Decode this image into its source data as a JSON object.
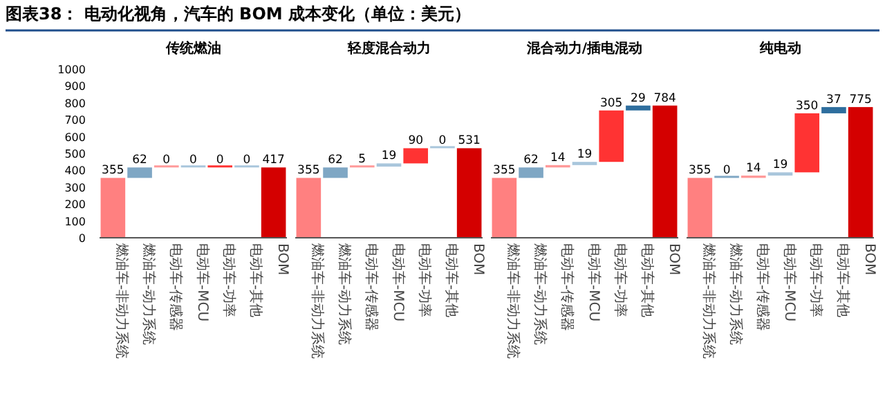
{
  "chart_data": [
    {
      "type": "bar",
      "title": "传统燃油",
      "annotations": [
        "图表38：  电动化视角，汽车的 BOM 成本变化（单位：美元）"
      ],
      "categories": [
        "燃油车-非动力系统",
        "燃油车-动力系统",
        "电动车-传感器",
        "电动车-MCU",
        "电动车-功率",
        "电动车-其他",
        "BOM"
      ],
      "values": [
        355,
        62,
        0,
        0,
        0,
        0,
        417
      ],
      "base": [
        0,
        355,
        417,
        417,
        417,
        417,
        0
      ],
      "colors": [
        "#ff8080",
        "#7fa7c4",
        "#ff9a9a",
        "#a9c6dc",
        "#ff3333",
        "#a9c6dc",
        "#d40000"
      ],
      "ylim": [
        0,
        1000
      ],
      "yticks": [
        0,
        100,
        200,
        300,
        400,
        500,
        600,
        700,
        800,
        900,
        1000
      ],
      "data_labels": true
    },
    {
      "type": "bar",
      "title": "轻度混合动力",
      "categories": [
        "燃油车-非动力系统",
        "燃油车-动力系统",
        "电动车-传感器",
        "电动车-MCU",
        "电动车-功率",
        "电动车-其他",
        "BOM"
      ],
      "values": [
        355,
        62,
        5,
        19,
        90,
        0,
        531
      ],
      "base": [
        0,
        355,
        417,
        422,
        441,
        531,
        0
      ],
      "colors": [
        "#ff8080",
        "#7fa7c4",
        "#ff9a9a",
        "#a9c6dc",
        "#ff3333",
        "#a9c6dc",
        "#d40000"
      ],
      "ylim": [
        0,
        1000
      ],
      "tick_labels": "x",
      "data_labels": true
    },
    {
      "type": "bar",
      "title": "混合动力/插电混动",
      "categories": [
        "燃油车-非动力系统",
        "燃油车-动力系统",
        "电动车-传感器",
        "电动车-MCU",
        "电动车-功率",
        "电动车-其他",
        "BOM"
      ],
      "values": [
        355,
        62,
        14,
        19,
        305,
        29,
        784
      ],
      "base": [
        0,
        355,
        417,
        431,
        450,
        755,
        0
      ],
      "colors": [
        "#ff8080",
        "#7fa7c4",
        "#ff9a9a",
        "#a9c6dc",
        "#ff3333",
        "#2e6e9e",
        "#d40000"
      ],
      "ylim": [
        0,
        1000
      ],
      "tick_labels": "x",
      "data_labels": true
    },
    {
      "type": "bar",
      "title": "纯电动",
      "categories": [
        "燃油车-非动力系统",
        "燃油车-动力系统",
        "电动车-传感器",
        "电动车-MCU",
        "电动车-功率",
        "电动车-其他",
        "BOM"
      ],
      "values": [
        355,
        0,
        14,
        19,
        350,
        37,
        775
      ],
      "base": [
        0,
        355,
        355,
        369,
        388,
        738,
        0
      ],
      "colors": [
        "#ff8080",
        "#7fa7c4",
        "#ff9a9a",
        "#a9c6dc",
        "#ff3333",
        "#2e6e9e",
        "#d40000"
      ],
      "ylim": [
        0,
        1000
      ],
      "tick_labels": "x",
      "data_labels": true
    }
  ]
}
